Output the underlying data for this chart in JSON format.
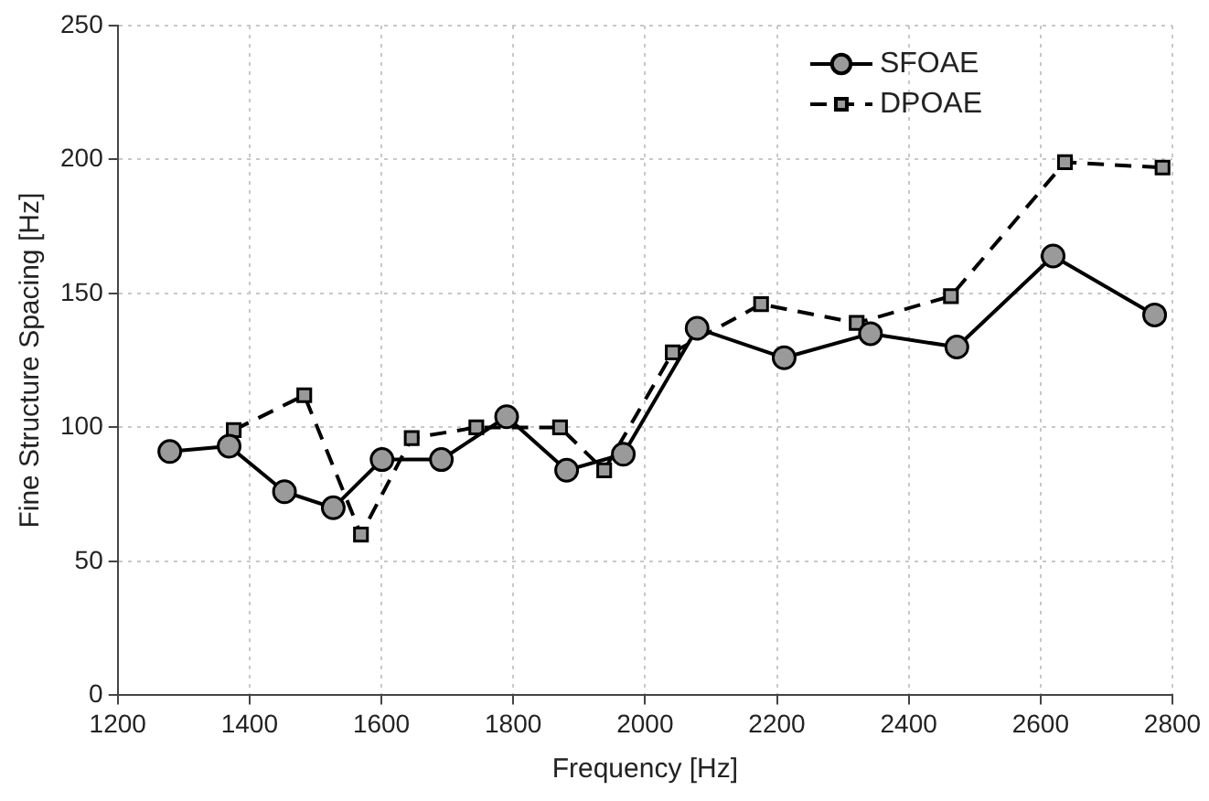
{
  "chart_data": {
    "type": "line",
    "xlabel": "Frequency [Hz]",
    "ylabel": "Fine Structure Spacing [Hz]",
    "xlim": [
      1200,
      2800
    ],
    "xticks": [
      1200,
      1400,
      1600,
      1800,
      2000,
      2200,
      2400,
      2600,
      2800
    ],
    "ylim": [
      0,
      250
    ],
    "yticks": [
      0,
      50,
      100,
      150,
      200,
      250
    ],
    "grid": true,
    "legend": "top right",
    "series": [
      {
        "name": "SFOAE",
        "color": "#000000",
        "marker": "circle",
        "line_style": "solid",
        "x": [
          1279,
          1369,
          1453,
          1527,
          1601,
          1691,
          1790,
          1881,
          1967,
          2079,
          2211,
          2342,
          2473,
          2619,
          2773
        ],
        "values": [
          91,
          93,
          76,
          70,
          88,
          88,
          104,
          84,
          90,
          137,
          126,
          135,
          130,
          164,
          142
        ]
      },
      {
        "name": "DPOAE",
        "color": "#000000",
        "marker": "square",
        "line_style": "dashed",
        "x": [
          1376,
          1483,
          1569,
          1646,
          1744,
          1871,
          1938,
          2042,
          2176,
          2321,
          2464,
          2637,
          2785
        ],
        "values": [
          99,
          112,
          60,
          96,
          100,
          100,
          84,
          128,
          146,
          139,
          149,
          199,
          197
        ]
      }
    ]
  }
}
